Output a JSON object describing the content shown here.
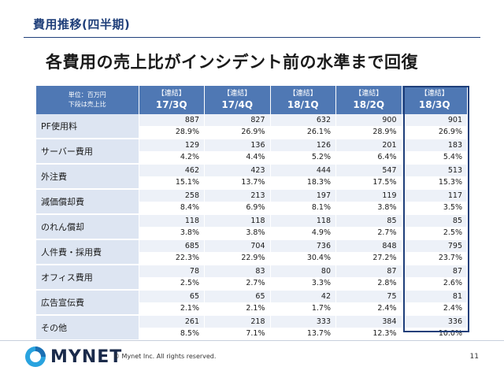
{
  "section_title": "費用推移(四半期)",
  "headline": "各費用の売上比がインシデント前の水準まで回復",
  "table": {
    "unit_label_line1": "単位：百万円",
    "unit_label_line2": "下段は売上比",
    "columns": [
      {
        "bracket": "【連結】",
        "period": "17/3Q"
      },
      {
        "bracket": "【連結】",
        "period": "17/4Q"
      },
      {
        "bracket": "【連結】",
        "period": "18/1Q"
      },
      {
        "bracket": "【連結】",
        "period": "18/2Q"
      },
      {
        "bracket": "【連結】",
        "period": "18/3Q"
      }
    ],
    "rows": [
      {
        "label": "PF使用料",
        "values": [
          "887",
          "827",
          "632",
          "900",
          "901"
        ],
        "ratios": [
          "28.9%",
          "26.9%",
          "26.1%",
          "28.9%",
          "26.9%"
        ]
      },
      {
        "label": "サーバー費用",
        "values": [
          "129",
          "136",
          "126",
          "201",
          "183"
        ],
        "ratios": [
          "4.2%",
          "4.4%",
          "5.2%",
          "6.4%",
          "5.4%"
        ]
      },
      {
        "label": "外注費",
        "values": [
          "462",
          "423",
          "444",
          "547",
          "513"
        ],
        "ratios": [
          "15.1%",
          "13.7%",
          "18.3%",
          "17.5%",
          "15.3%"
        ]
      },
      {
        "label": "減価償却費",
        "values": [
          "258",
          "213",
          "197",
          "119",
          "117"
        ],
        "ratios": [
          "8.4%",
          "6.9%",
          "8.1%",
          "3.8%",
          "3.5%"
        ]
      },
      {
        "label": "のれん償却",
        "values": [
          "118",
          "118",
          "118",
          "85",
          "85"
        ],
        "ratios": [
          "3.8%",
          "3.8%",
          "4.9%",
          "2.7%",
          "2.5%"
        ]
      },
      {
        "label": "人件費・採用費",
        "values": [
          "685",
          "704",
          "736",
          "848",
          "795"
        ],
        "ratios": [
          "22.3%",
          "22.9%",
          "30.4%",
          "27.2%",
          "23.7%"
        ]
      },
      {
        "label": "オフィス費用",
        "values": [
          "78",
          "83",
          "80",
          "87",
          "87"
        ],
        "ratios": [
          "2.5%",
          "2.7%",
          "3.3%",
          "2.8%",
          "2.6%"
        ]
      },
      {
        "label": "広告宣伝費",
        "values": [
          "65",
          "65",
          "42",
          "75",
          "81"
        ],
        "ratios": [
          "2.1%",
          "2.1%",
          "1.7%",
          "2.4%",
          "2.4%"
        ]
      },
      {
        "label": "その他",
        "values": [
          "261",
          "218",
          "333",
          "384",
          "336"
        ],
        "ratios": [
          "8.5%",
          "7.1%",
          "13.7%",
          "12.3%",
          "10.0%"
        ]
      }
    ]
  },
  "footer": {
    "logo_text": "MYNET",
    "copyright": "© Mynet Inc. All rights reserved.",
    "page_number": "11"
  },
  "colors": {
    "header_bg": "#4f78b4",
    "accent": "#1f3f7a",
    "label_bg": "#dde5f2",
    "logo_blue": "#29a3df"
  }
}
